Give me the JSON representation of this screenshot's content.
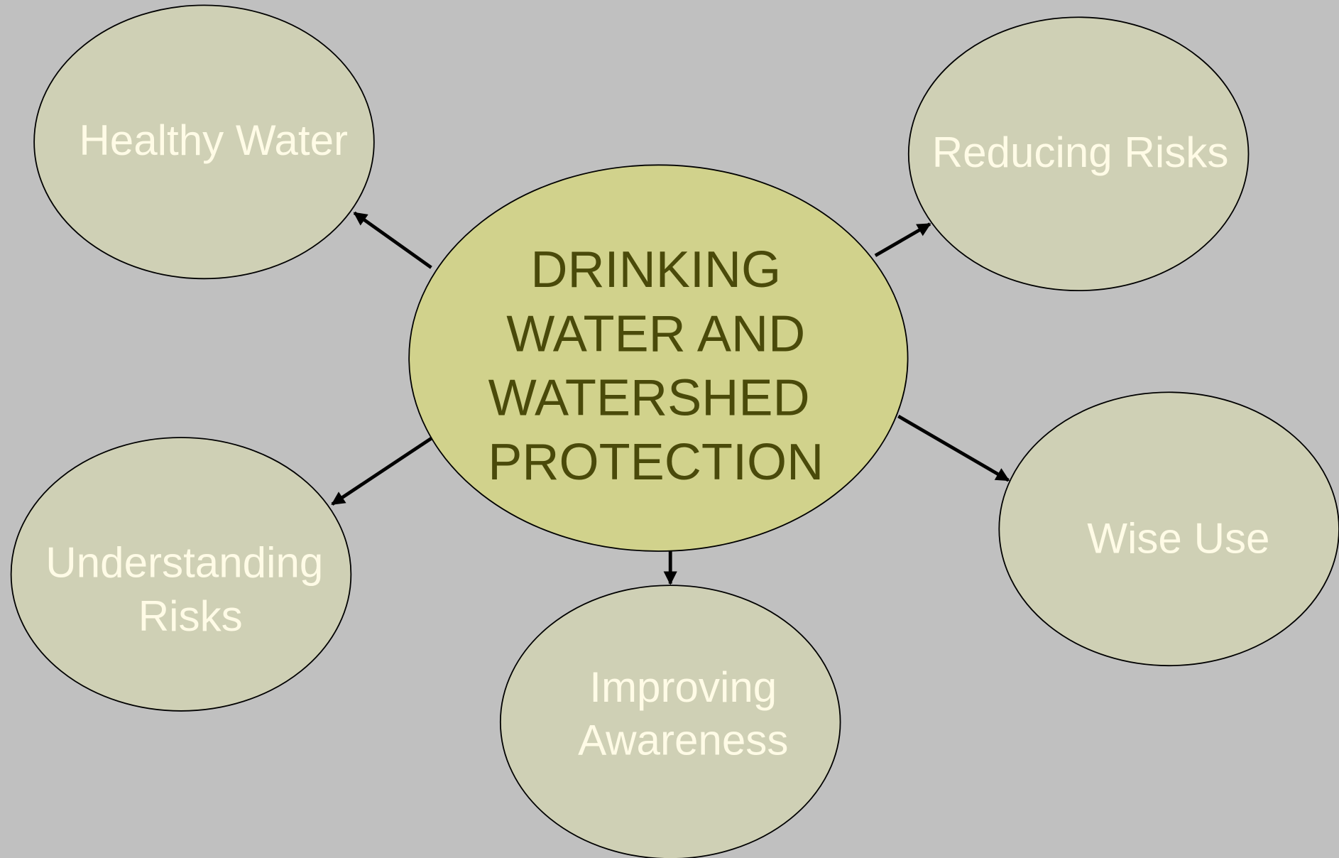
{
  "center": {
    "lines": [
      "DRINKING",
      "WATER AND",
      "WATERSHED",
      "PROTECTION"
    ]
  },
  "nodes": [
    {
      "lines": [
        "Healthy Water"
      ]
    },
    {
      "lines": [
        "Reducing Risks"
      ]
    },
    {
      "lines": [
        "Understanding",
        "Risks"
      ]
    },
    {
      "lines": [
        "Wise Use"
      ]
    },
    {
      "lines": [
        "Improving",
        "Awareness"
      ]
    }
  ]
}
